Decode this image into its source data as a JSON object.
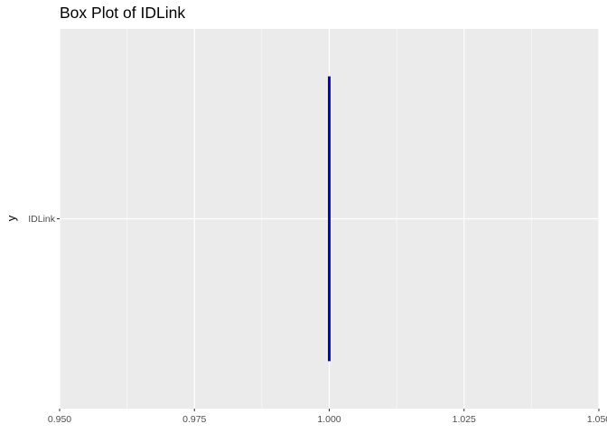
{
  "chart_data": {
    "type": "box",
    "title": "Box Plot of IDLink",
    "xlabel": "",
    "ylabel": "y",
    "orientation": "horizontal",
    "categories": [
      "IDLink"
    ],
    "x_ticks": [
      "0.950",
      "0.975",
      "1.000",
      "1.025",
      "1.050"
    ],
    "x_tick_values": [
      0.95,
      0.975,
      1.0,
      1.025,
      1.05
    ],
    "xlim": [
      0.95,
      1.05
    ],
    "series": [
      {
        "category": "IDLink",
        "min": 1.0,
        "q1": 1.0,
        "median": 1.0,
        "q3": 1.0,
        "max": 1.0
      }
    ],
    "grid": true,
    "legend": "none",
    "colors": {
      "panel": "#ebebeb",
      "grid_major": "#ffffff",
      "grid_minor": "#f5f5f5",
      "box_line": "#0000ff",
      "tick": "#333333",
      "tick_label": "#4d4d4d"
    }
  }
}
